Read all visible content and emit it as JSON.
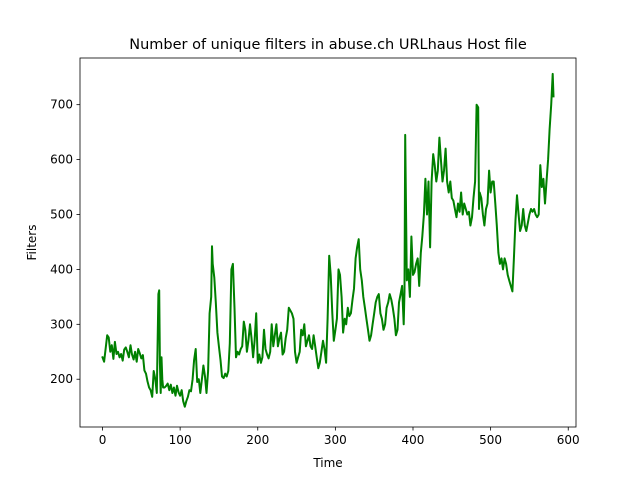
{
  "chart_data": {
    "type": "line",
    "title": "Number of unique filters in abuse.ch URLhaus Host file",
    "xlabel": "Time",
    "ylabel": "Filters",
    "xlim": [
      -29,
      610
    ],
    "ylim": [
      113,
      785
    ],
    "xticks": [
      0,
      100,
      200,
      300,
      400,
      500,
      600
    ],
    "yticks": [
      200,
      300,
      400,
      500,
      600,
      700
    ],
    "grid": false,
    "legend": "none",
    "series": [
      {
        "color": "#008000",
        "x": [
          0,
          2,
          4,
          6,
          8,
          10,
          12,
          14,
          16,
          18,
          20,
          22,
          24,
          26,
          28,
          30,
          32,
          34,
          36,
          38,
          40,
          42,
          44,
          46,
          48,
          50,
          52,
          54,
          56,
          58,
          60,
          62,
          64,
          66,
          68,
          70,
          72,
          73,
          74,
          75,
          76,
          77,
          78,
          80,
          82,
          84,
          86,
          88,
          90,
          92,
          94,
          96,
          98,
          100,
          102,
          104,
          106,
          108,
          110,
          112,
          114,
          116,
          118,
          120,
          122,
          124,
          126,
          128,
          130,
          132,
          134,
          136,
          138,
          140,
          141,
          142,
          144,
          146,
          148,
          150,
          152,
          154,
          156,
          158,
          160,
          162,
          164,
          166,
          168,
          170,
          172,
          174,
          176,
          178,
          180,
          182,
          184,
          186,
          188,
          190,
          192,
          194,
          196,
          198,
          200,
          202,
          204,
          206,
          208,
          210,
          212,
          214,
          216,
          218,
          220,
          222,
          224,
          226,
          228,
          230,
          232,
          234,
          236,
          238,
          240,
          242,
          244,
          246,
          248,
          250,
          252,
          254,
          256,
          258,
          260,
          262,
          264,
          266,
          268,
          270,
          272,
          274,
          276,
          278,
          280,
          282,
          284,
          286,
          288,
          290,
          292,
          294,
          296,
          298,
          300,
          302,
          304,
          306,
          308,
          310,
          312,
          314,
          316,
          318,
          320,
          322,
          324,
          326,
          328,
          330,
          332,
          334,
          336,
          338,
          340,
          342,
          344,
          346,
          348,
          350,
          352,
          354,
          356,
          358,
          360,
          362,
          364,
          366,
          368,
          370,
          372,
          374,
          376,
          378,
          380,
          382,
          384,
          386,
          388,
          389,
          390,
          392,
          394,
          396,
          398,
          400,
          402,
          404,
          406,
          408,
          410,
          412,
          414,
          416,
          418,
          420,
          422,
          424,
          426,
          428,
          430,
          432,
          434,
          436,
          438,
          440,
          442,
          444,
          446,
          448,
          450,
          452,
          454,
          456,
          458,
          460,
          462,
          464,
          466,
          468,
          470,
          472,
          474,
          476,
          478,
          480,
          482,
          484,
          485,
          486,
          488,
          490,
          492,
          494,
          496,
          498,
          500,
          502,
          504,
          506,
          508,
          510,
          512,
          514,
          516,
          518,
          520,
          522,
          524,
          526,
          528,
          530,
          532,
          534,
          536,
          538,
          540,
          542,
          544,
          546,
          548,
          550,
          552,
          554,
          556,
          558,
          560,
          562,
          564,
          566,
          568,
          570,
          572,
          574,
          576,
          578,
          580,
          581
        ],
        "y": [
          240,
          232,
          255,
          280,
          276,
          250,
          262,
          237,
          268,
          246,
          250,
          240,
          246,
          234,
          254,
          258,
          250,
          240,
          262,
          245,
          236,
          250,
          232,
          255,
          247,
          238,
          244,
          216,
          210,
          196,
          185,
          180,
          168,
          215,
          200,
          175,
          355,
          362,
          230,
          175,
          240,
          200,
          185,
          185,
          188,
          192,
          180,
          190,
          175,
          185,
          170,
          188,
          176,
          170,
          180,
          160,
          150,
          160,
          168,
          180,
          178,
          200,
          235,
          255,
          195,
          200,
          175,
          200,
          225,
          205,
          175,
          215,
          320,
          350,
          442,
          410,
          385,
          340,
          285,
          260,
          235,
          205,
          202,
          210,
          205,
          215,
          265,
          400,
          410,
          330,
          240,
          250,
          245,
          255,
          260,
          305,
          290,
          250,
          270,
          300,
          275,
          240,
          270,
          320,
          230,
          245,
          230,
          240,
          290,
          255,
          245,
          238,
          250,
          300,
          260,
          280,
          300,
          260,
          275,
          285,
          245,
          250,
          275,
          290,
          330,
          325,
          320,
          310,
          250,
          230,
          240,
          250,
          290,
          280,
          300,
          260,
          270,
          280,
          260,
          255,
          280,
          260,
          240,
          220,
          230,
          250,
          270,
          255,
          230,
          310,
          425,
          390,
          320,
          270,
          290,
          310,
          400,
          390,
          350,
          285,
          310,
          300,
          330,
          315,
          320,
          345,
          365,
          420,
          440,
          455,
          400,
          380,
          350,
          330,
          310,
          290,
          270,
          280,
          300,
          320,
          340,
          350,
          355,
          320,
          310,
          290,
          300,
          330,
          340,
          355,
          345,
          330,
          310,
          280,
          290,
          340,
          355,
          370,
          300,
          360,
          645,
          380,
          400,
          350,
          460,
          390,
          395,
          410,
          420,
          370,
          430,
          460,
          500,
          565,
          500,
          560,
          440,
          560,
          610,
          590,
          560,
          580,
          640,
          600,
          560,
          580,
          620,
          560,
          540,
          560,
          530,
          525,
          510,
          495,
          520,
          505,
          540,
          500,
          520,
          510,
          500,
          505,
          480,
          495,
          530,
          560,
          700,
          695,
          510,
          540,
          530,
          500,
          480,
          510,
          520,
          580,
          540,
          560,
          560,
          520,
          480,
          430,
          410,
          420,
          400,
          420,
          410,
          390,
          380,
          370,
          360,
          420,
          490,
          535,
          500,
          470,
          480,
          510,
          480,
          470,
          485,
          500,
          510,
          505,
          510,
          500,
          495,
          500,
          590,
          550,
          565,
          520,
          560,
          600,
          655,
          700,
          756,
          715
        ]
      }
    ]
  }
}
